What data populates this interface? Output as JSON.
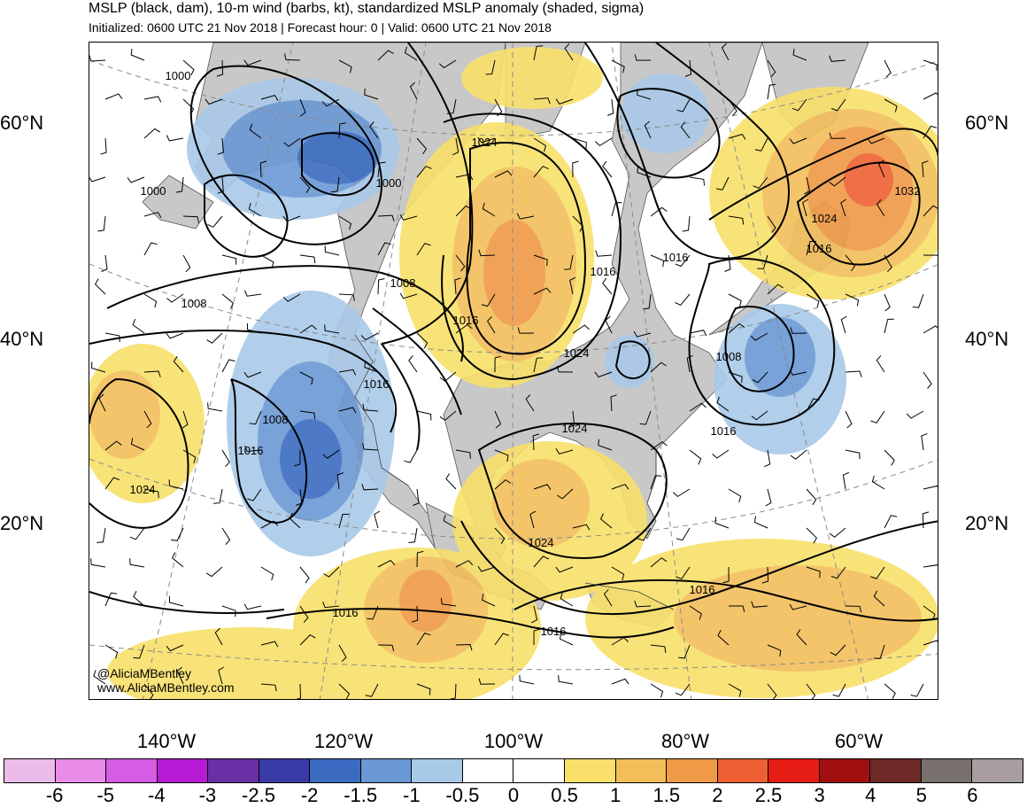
{
  "header": {
    "title": "MSLP (black, dam), 10-m wind (barbs, kt), standardized MSLP anomaly (shaded, sigma)",
    "subtitle": "Initialized: 0600 UTC 21 Nov 2018 | Forecast hour: 0 | Valid: 0600 UTC 21 Nov 2018"
  },
  "map": {
    "lat_labels": [
      "60°N",
      "40°N",
      "20°N"
    ],
    "lon_labels": [
      "140°W",
      "120°W",
      "100°W",
      "80°W",
      "60°W"
    ],
    "isobar_labels": [
      "1000",
      "1000",
      "1000",
      "1008",
      "1008",
      "1008",
      "1016",
      "1016",
      "1016",
      "1024",
      "1024",
      "1024",
      "1024",
      "1024",
      "1016",
      "1016",
      "1016",
      "1024",
      "1032",
      "1016",
      "1008",
      "1016",
      "1016",
      "1016"
    ],
    "colors": {
      "land": "#c8c8c8",
      "ocean": "#ffffff",
      "isobar": "#000000",
      "grid": "#8a8a8a"
    }
  },
  "credits": {
    "handle": "@AliciaMBentley",
    "site": "www.AliciaMBentley.com"
  },
  "colorbar": {
    "labels": [
      "-6",
      "-5",
      "-4",
      "-3",
      "-2.5",
      "-2",
      "-1.5",
      "-1",
      "-0.5",
      "0",
      "0.5",
      "1",
      "1.5",
      "2",
      "2.5",
      "3",
      "4",
      "5",
      "6"
    ],
    "colors": [
      "#ebbbe9",
      "#e98be8",
      "#d65ce3",
      "#b51ad5",
      "#6a2ea5",
      "#3b3ba8",
      "#3a6bc1",
      "#6a98d4",
      "#a9c9e8",
      "#ffffff",
      "#ffffff",
      "#f8e06a",
      "#f2be5a",
      "#ef9a46",
      "#ee6034",
      "#e61d15",
      "#a10f10",
      "#6e2a27",
      "#78706d",
      "#a89ea0"
    ]
  }
}
